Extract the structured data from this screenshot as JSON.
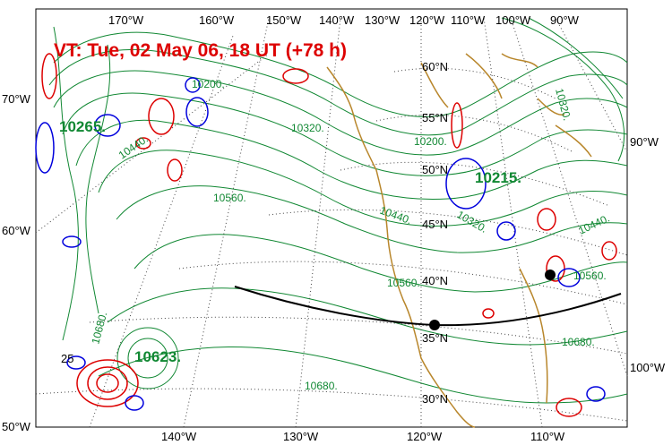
{
  "title": "VT:  Tue, 02 May 06, 18 UT (+78 h)",
  "colors": {
    "height_contour": "#118833",
    "coast": "#b8862b",
    "positive": "#dd0000",
    "negative": "#0000dd",
    "track": "#000000",
    "grid": "#444444"
  },
  "top_longitudes": [
    "170°W",
    "160°W",
    "150°W",
    "140°W",
    "130°W",
    "120°W",
    "110°W",
    "100°W",
    "90°W"
  ],
  "bottom_longitudes": [
    "140°W",
    "130°W",
    "120°W",
    "110°W"
  ],
  "left_latitudes": [
    "70°W",
    "60°W",
    "50°W"
  ],
  "right_longitudes": [
    "90°W",
    "100°W"
  ],
  "inner_latitudes": [
    "60°N",
    "55°N",
    "50°N",
    "45°N",
    "40°N",
    "35°N",
    "30°N"
  ],
  "contour_labels": [
    "10200.",
    "10320.",
    "10440.",
    "10560.",
    "10200.",
    "10320.",
    "10440.",
    "10560.",
    "10680.",
    "10680.",
    "10560.",
    "10440.",
    "10320.",
    "10680.",
    "25"
  ],
  "center_labels": [
    "10265.",
    "10215.",
    "10623."
  ]
}
